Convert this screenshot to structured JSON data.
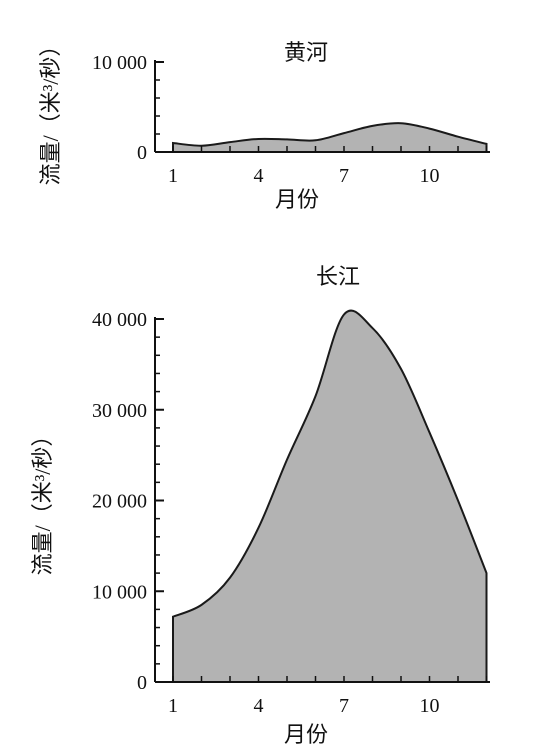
{
  "chart_data": [
    {
      "type": "area",
      "title": "黄河",
      "xlabel": "月份",
      "ylabel": "流量/（米³/秒）",
      "x_ticks": [
        "1",
        "4",
        "7",
        "10"
      ],
      "y_ticks": [
        "0",
        "10 000"
      ],
      "ylim": [
        0,
        10000
      ],
      "xlim": [
        1,
        12
      ],
      "series": [
        {
          "x": [
            1,
            2,
            3,
            4,
            5,
            6,
            7,
            8,
            9,
            10,
            11,
            12
          ],
          "values": [
            1000,
            700,
            1100,
            1450,
            1400,
            1300,
            2100,
            2900,
            3200,
            2600,
            1700,
            900
          ]
        }
      ]
    },
    {
      "type": "area",
      "title": "长江",
      "xlabel": "月份",
      "ylabel": "流量/（米³/秒）",
      "x_ticks": [
        "1",
        "4",
        "7",
        "10"
      ],
      "y_ticks": [
        "0",
        "10 000",
        "20 000",
        "30 000",
        "40 000"
      ],
      "ylim": [
        0,
        40000
      ],
      "xlim": [
        1,
        12
      ],
      "series": [
        {
          "x": [
            1,
            2,
            3,
            4,
            5,
            6,
            7,
            8,
            9,
            10,
            11,
            12
          ],
          "values": [
            7200,
            8500,
            11500,
            17000,
            24500,
            31500,
            40500,
            39000,
            34500,
            27500,
            20000,
            12000
          ]
        }
      ]
    }
  ]
}
